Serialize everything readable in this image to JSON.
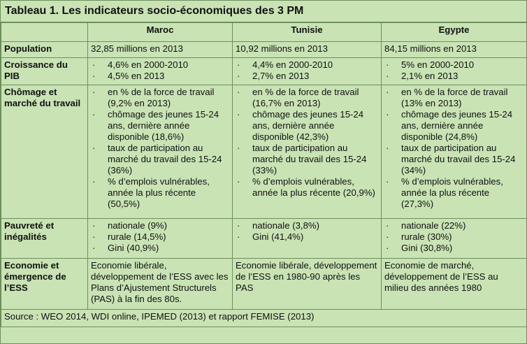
{
  "title": "Tableau 1. Les indicateurs socio-économiques des 3 PM",
  "headers": [
    "",
    "Maroc",
    "Tunisie",
    "Egypte"
  ],
  "rows": {
    "population": {
      "label": "Population",
      "maroc": "32,85 millions en 2013",
      "tunisie": "10,92 millions en 2013",
      "egypte": "84,15 millions en 2013"
    },
    "pib": {
      "label": "Croissance du PIB",
      "maroc": [
        "4,6% en 2000-2010",
        "4,5% en 2013"
      ],
      "tunisie": [
        "4,4% en 2000-2010",
        "2,7% en 2013"
      ],
      "egypte": [
        "5% en 2000-2010",
        "2,1% en 2013"
      ]
    },
    "chomage": {
      "label": "Chômage et marché du travail",
      "maroc": [
        "en % de la force de travail (9,2% en 2013)",
        "chômage des jeunes 15-24 ans, dernière année disponible (18,6%)",
        "taux de participation au marché du travail des 15-24 (36%)",
        "% d’emplois vulnérables, année la plus récente (50,5%)"
      ],
      "tunisie": [
        "en % de la force de travail (16,7% en 2013)",
        "chômage des jeunes 15-24 ans, dernière année disponible (42,3%)",
        "taux de participation au marché du travail des 15-24 (33%)",
        "% d’emplois vulnérables, année la plus récente (20,9%)"
      ],
      "egypte": [
        "en % de la force de travail (13% en 2013)",
        "chômage des jeunes 15-24 ans, dernière année disponible (24,8%)",
        "taux de participation au marché du travail des 15-24 (34%)",
        "% d’emplois vulnérables, année la plus récente (27,3%)"
      ]
    },
    "pauvrete": {
      "label": "Pauvreté et inégalités",
      "maroc": [
        "nationale (9%)",
        "rurale (14,5%)",
        "Gini (40,9%)"
      ],
      "tunisie": [
        "nationale (3,8%)",
        "Gini (41,4%)"
      ],
      "egypte": [
        "nationale (22%)",
        "rurale (30%)",
        "Gini (30,8%)"
      ]
    },
    "economie": {
      "label": "Economie et émergence de l’ESS",
      "maroc": "Economie libérale, développement de l’ESS avec les Plans d’Ajustement Structurels (PAS) à la fin des 80s.",
      "tunisie": "Economie libérale, développement de l’ESS en 1980-90 après les PAS",
      "egypte": "Economie de marché, développement de l’ESS au milieu des années 1980"
    }
  },
  "source": "Source : WEO 2014, WDI online, IPEMED (2013) et rapport FEMISE (2013)"
}
